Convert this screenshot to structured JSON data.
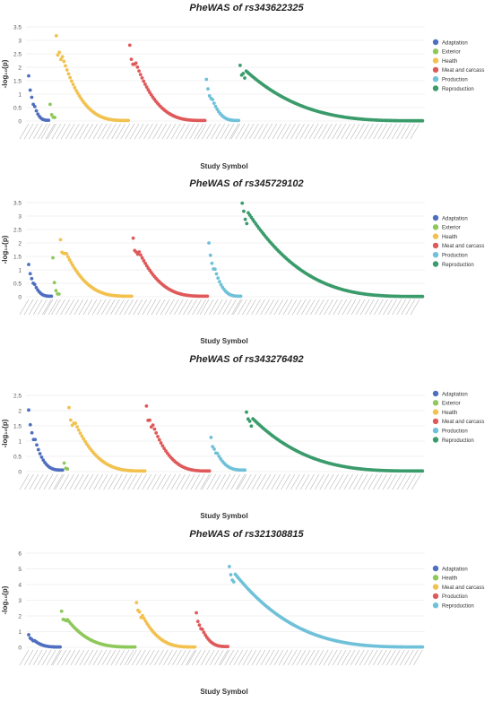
{
  "category_colors": {
    "Adaptation": "#4e6ebf",
    "Exterior": "#8fc85a",
    "Health": "#f2c14e",
    "Meat and carcass": "#e0595a",
    "Production": "#6fc1d9",
    "Reproduction": "#3a9b6b"
  },
  "chart_data": [
    {
      "type": "scatter",
      "title": "PheWAS of rs343622325",
      "xlabel": "Study Symbol",
      "ylabel": "-log₁₀(p)",
      "ylim": [
        0,
        3.5
      ],
      "yticks": [
        0,
        0.5,
        1,
        1.5,
        2,
        2.5,
        3,
        3.5
      ],
      "grid": true,
      "legend_position": "right",
      "series": [
        {
          "name": "Adaptation",
          "color": "#4e6ebf",
          "count": 14,
          "max": 1.68,
          "min": 0.03
        },
        {
          "name": "Exterior",
          "color": "#8fc85a",
          "count": 4,
          "max": 0.62,
          "min": 0.15
        },
        {
          "name": "Health",
          "color": "#f2c14e",
          "count": 48,
          "max": 3.17,
          "min": 0.02
        },
        {
          "name": "Meat and carcass",
          "color": "#e0595a",
          "count": 50,
          "max": 2.82,
          "min": 0.02
        },
        {
          "name": "Production",
          "color": "#6fc1d9",
          "count": 22,
          "max": 1.55,
          "min": 0.02
        },
        {
          "name": "Reproduction",
          "color": "#3a9b6b",
          "count": 120,
          "max": 2.07,
          "min": 0.01
        }
      ]
    },
    {
      "type": "scatter",
      "title": "PheWAS of rs345729102",
      "xlabel": "Study Symbol",
      "ylabel": "-log₁₀(p)",
      "ylim": [
        0,
        3.5
      ],
      "yticks": [
        0,
        0.5,
        1,
        1.5,
        2,
        2.5,
        3,
        3.5
      ],
      "grid": true,
      "legend_position": "right",
      "series": [
        {
          "name": "Adaptation",
          "color": "#4e6ebf",
          "count": 16,
          "max": 1.2,
          "min": 0.02
        },
        {
          "name": "Exterior",
          "color": "#8fc85a",
          "count": 5,
          "max": 1.45,
          "min": 0.1
        },
        {
          "name": "Health",
          "color": "#f2c14e",
          "count": 48,
          "max": 2.12,
          "min": 0.02
        },
        {
          "name": "Meat and carcass",
          "color": "#e0595a",
          "count": 50,
          "max": 2.18,
          "min": 0.02
        },
        {
          "name": "Production",
          "color": "#6fc1d9",
          "count": 22,
          "max": 2.0,
          "min": 0.02
        },
        {
          "name": "Reproduction",
          "color": "#3a9b6b",
          "count": 120,
          "max": 3.48,
          "min": 0.01
        }
      ]
    },
    {
      "type": "scatter",
      "title": "PheWAS of rs343276492",
      "xlabel": "Study Symbol",
      "ylabel": "-log₁₀(p)",
      "ylim": [
        0,
        2.5
      ],
      "yticks": [
        0,
        0.5,
        1,
        1.5,
        2,
        2.5
      ],
      "grid": true,
      "legend_position": "right",
      "series": [
        {
          "name": "Adaptation",
          "color": "#4e6ebf",
          "count": 22,
          "max": 2.02,
          "min": 0.05
        },
        {
          "name": "Exterior",
          "color": "#8fc85a",
          "count": 3,
          "max": 0.28,
          "min": 0.1
        },
        {
          "name": "Health",
          "color": "#f2c14e",
          "count": 48,
          "max": 2.1,
          "min": 0.02
        },
        {
          "name": "Meat and carcass",
          "color": "#e0595a",
          "count": 40,
          "max": 2.15,
          "min": 0.02
        },
        {
          "name": "Production",
          "color": "#6fc1d9",
          "count": 22,
          "max": 1.12,
          "min": 0.05
        },
        {
          "name": "Reproduction",
          "color": "#3a9b6b",
          "count": 110,
          "max": 1.95,
          "min": 0.02
        }
      ]
    },
    {
      "type": "scatter",
      "title": "PheWAS of rs321308815",
      "xlabel": "Study Symbol",
      "ylabel": "-log₁₀(p)",
      "ylim": [
        0,
        6
      ],
      "yticks": [
        0,
        1,
        2,
        3,
        4,
        5,
        6
      ],
      "grid": true,
      "legend_position": "right",
      "series": [
        {
          "name": "Adaptation",
          "color": "#4e6ebf",
          "count": 22,
          "max": 0.8,
          "min": 0.02
        },
        {
          "name": "Health",
          "color": "#8fc85a",
          "count": 50,
          "max": 2.3,
          "min": 0.02
        },
        {
          "name": "Meat and carcass",
          "color": "#f2c14e",
          "count": 40,
          "max": 2.85,
          "min": 0.02
        },
        {
          "name": "Production",
          "color": "#e0595a",
          "count": 22,
          "max": 2.2,
          "min": 0.05
        },
        {
          "name": "Reproduction",
          "color": "#6fc1d9",
          "count": 130,
          "max": 5.15,
          "min": 0.02
        }
      ]
    }
  ]
}
